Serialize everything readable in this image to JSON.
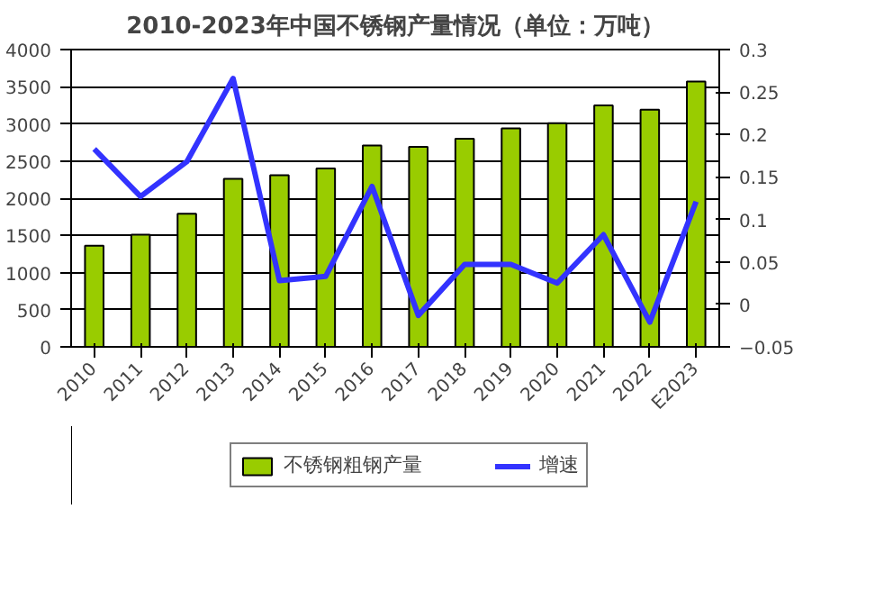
{
  "chart_data": {
    "type": "bar",
    "title": "2010-2023年中国不锈钢产量情况（单位：万吨）",
    "categories": [
      "2010",
      "2011",
      "2012",
      "2013",
      "2014",
      "2015",
      "2016",
      "2017",
      "2018",
      "2019",
      "2020",
      "2021",
      "2022",
      "E2023"
    ],
    "series": [
      {
        "name": "不锈钢粗钢产量",
        "color": "#99cc00",
        "values": [
          1360,
          1510,
          1790,
          2260,
          2310,
          2400,
          2710,
          2690,
          2800,
          2940,
          3010,
          3250,
          3190,
          3570
        ]
      },
      {
        "name": "增速",
        "type": "line",
        "axis": "y2",
        "color": "#3333ff",
        "values": [
          0.183,
          0.127,
          0.168,
          0.266,
          0.028,
          0.033,
          0.139,
          -0.013,
          0.047,
          0.047,
          0.025,
          0.082,
          -0.021,
          0.121
        ]
      }
    ],
    "ylim": [
      0,
      4000
    ],
    "yticks": [
      0,
      500,
      1000,
      1500,
      2000,
      2500,
      3000,
      3500,
      4000
    ],
    "y2lim": [
      -0.05,
      0.3
    ],
    "y2ticks": [
      -0.05,
      0,
      0.05,
      0.1,
      0.15,
      0.2,
      0.25,
      0.3
    ],
    "grid": "y",
    "legend": "bottom",
    "marker": "none",
    "line_style": "solid"
  }
}
